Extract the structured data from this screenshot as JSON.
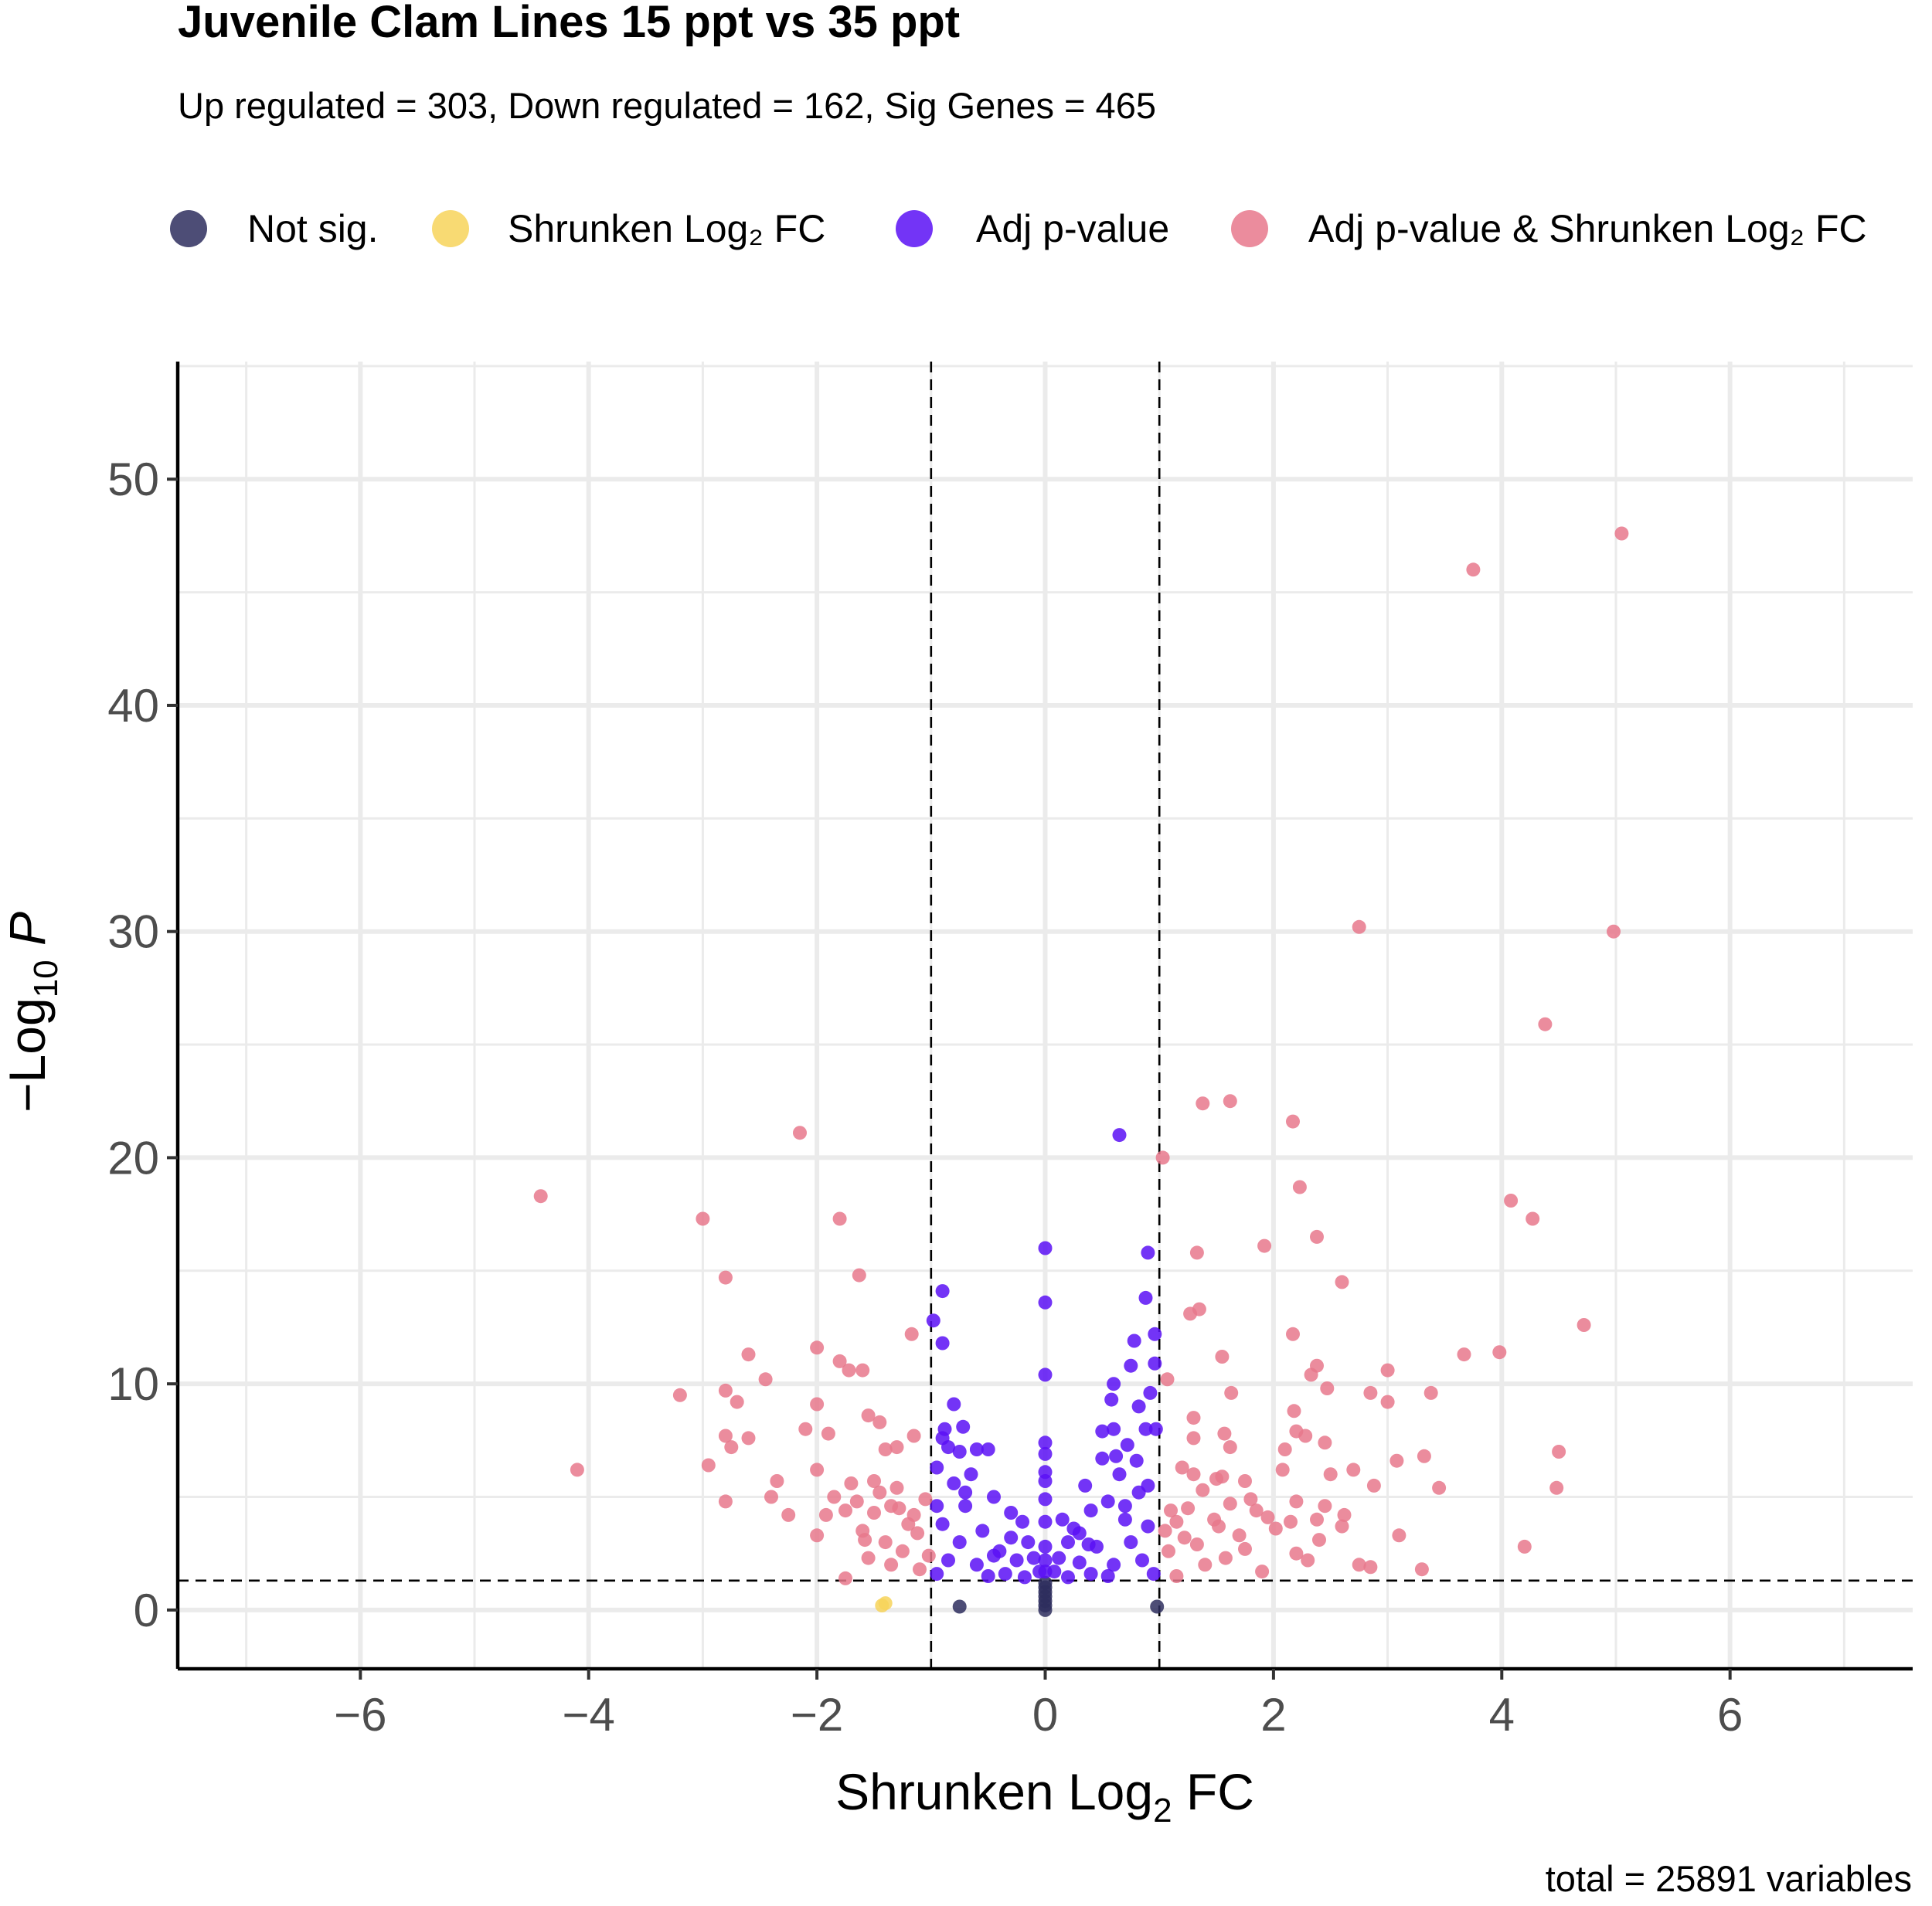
{
  "chart_data": {
    "type": "scatter",
    "title": "Juvenile Clam Lines 15 ppt vs 35 ppt",
    "subtitle": "Up regulated = 303, Down regulated = 162, Sig Genes = 465",
    "caption": "total = 25891 variables",
    "xlabel": {
      "base": "Shrunken Log",
      "sub": "2",
      "tail": " FC"
    },
    "ylabel": {
      "base": "−Log",
      "sub": "10",
      "tail": " P"
    },
    "xlim": [
      -7.6,
      7.6
    ],
    "ylim": [
      -2.6,
      55.2
    ],
    "xticks": [
      -6,
      -4,
      -2,
      0,
      2,
      4,
      6
    ],
    "xtick_labels": [
      "−6",
      "−4",
      "−2",
      "0",
      "2",
      "4",
      "6"
    ],
    "yticks": [
      0,
      10,
      20,
      30,
      40,
      50
    ],
    "ytick_labels": [
      "0",
      "10",
      "20",
      "30",
      "40",
      "50"
    ],
    "cutoffs": {
      "fc": [
        -1,
        1
      ],
      "p_log10": 1.3
    },
    "grid": true,
    "legend_position": "top",
    "series": [
      {
        "name": "Not sig.",
        "color": "#2e2e5e",
        "points": [
          [
            -0.75,
            0.15
          ],
          [
            0.98,
            0.15
          ],
          [
            0,
            0
          ],
          [
            0,
            0.2
          ],
          [
            0,
            0.4
          ],
          [
            0,
            0.6
          ],
          [
            0,
            0.8
          ],
          [
            0,
            1.0
          ],
          [
            0,
            1.2
          ]
        ]
      },
      {
        "name": "Shrunken Log₂ FC",
        "color": "#f7d45a",
        "points": [
          [
            -1.43,
            0.2
          ],
          [
            -1.4,
            0.3
          ]
        ]
      },
      {
        "name": "Adj p-value",
        "color": "#5a10f5",
        "points": [
          [
            0.65,
            21.0
          ],
          [
            0,
            16.0
          ],
          [
            0.9,
            15.8
          ],
          [
            -0.9,
            14.1
          ],
          [
            0.88,
            13.8
          ],
          [
            0,
            13.6
          ],
          [
            -0.98,
            12.8
          ],
          [
            0.96,
            12.2
          ],
          [
            -0.9,
            11.8
          ],
          [
            0.78,
            11.9
          ],
          [
            0.96,
            10.9
          ],
          [
            0.75,
            10.8
          ],
          [
            0,
            10.4
          ],
          [
            0.6,
            10.0
          ],
          [
            0.92,
            9.6
          ],
          [
            0.58,
            9.3
          ],
          [
            -0.8,
            9.1
          ],
          [
            0.82,
            9.0
          ],
          [
            -0.72,
            8.1
          ],
          [
            -0.88,
            8.0
          ],
          [
            0.6,
            8.0
          ],
          [
            0.88,
            8.0
          ],
          [
            0.97,
            8.0
          ],
          [
            -0.9,
            7.6
          ],
          [
            0,
            7.4
          ],
          [
            0.72,
            7.3
          ],
          [
            -0.85,
            7.2
          ],
          [
            -0.5,
            7.1
          ],
          [
            -0.6,
            7.1
          ],
          [
            -0.75,
            7.0
          ],
          [
            0,
            6.9
          ],
          [
            0.5,
            6.7
          ],
          [
            0.8,
            6.6
          ],
          [
            -0.95,
            6.3
          ],
          [
            0,
            6.1
          ],
          [
            0.65,
            6.0
          ],
          [
            -0.8,
            5.6
          ],
          [
            0,
            5.7
          ],
          [
            0.35,
            5.5
          ],
          [
            -0.45,
            5.0
          ],
          [
            0.9,
            5.5
          ],
          [
            0.55,
            4.8
          ],
          [
            -0.3,
            4.3
          ],
          [
            0.4,
            4.4
          ],
          [
            -0.7,
            4.6
          ],
          [
            0.7,
            4.6
          ],
          [
            0,
            4.9
          ],
          [
            -0.2,
            3.9
          ],
          [
            0.25,
            3.6
          ],
          [
            0.3,
            3.4
          ],
          [
            -0.55,
            3.5
          ],
          [
            -0.9,
            3.8
          ],
          [
            0.9,
            3.7
          ],
          [
            -0.15,
            3.0
          ],
          [
            0.2,
            3.0
          ],
          [
            -0.1,
            2.3
          ],
          [
            0.12,
            2.3
          ],
          [
            -0.4,
            2.6
          ],
          [
            0.45,
            2.8
          ],
          [
            -0.75,
            3.0
          ],
          [
            0.75,
            3.0
          ],
          [
            0,
            3.9
          ],
          [
            -0.25,
            2.2
          ],
          [
            0.3,
            2.1
          ],
          [
            -0.6,
            2.0
          ],
          [
            0.6,
            2.0
          ],
          [
            -0.85,
            2.2
          ],
          [
            0.85,
            2.2
          ],
          [
            -0.05,
            1.7
          ],
          [
            0.08,
            1.7
          ],
          [
            -0.35,
            1.6
          ],
          [
            0.4,
            1.6
          ],
          [
            -0.95,
            1.6
          ],
          [
            0.95,
            1.6
          ],
          [
            -0.5,
            1.5
          ],
          [
            0.55,
            1.5
          ],
          [
            -0.18,
            1.45
          ],
          [
            0.2,
            1.45
          ],
          [
            0,
            2.8
          ],
          [
            0,
            2.2
          ],
          [
            0,
            1.7
          ],
          [
            -0.65,
            6.0
          ],
          [
            0.5,
            7.9
          ],
          [
            -0.3,
            3.2
          ],
          [
            0.15,
            4.0
          ],
          [
            0.82,
            5.2
          ],
          [
            -0.95,
            4.6
          ],
          [
            0.62,
            6.8
          ],
          [
            -0.7,
            5.2
          ],
          [
            0.7,
            4.0
          ],
          [
            -0.45,
            2.4
          ],
          [
            0.38,
            2.9
          ]
        ]
      },
      {
        "name": "Adj p-value & Shrunken Log₂ FC",
        "color": "#e8788c",
        "points": [
          [
            5.05,
            47.6
          ],
          [
            3.75,
            46.0
          ],
          [
            2.75,
            30.2
          ],
          [
            4.98,
            30.0
          ],
          [
            4.38,
            25.9
          ],
          [
            1.62,
            22.5
          ],
          [
            1.38,
            22.4
          ],
          [
            2.17,
            21.6
          ],
          [
            -2.15,
            21.1
          ],
          [
            1.03,
            20.0
          ],
          [
            2.23,
            18.7
          ],
          [
            -4.42,
            18.3
          ],
          [
            4.08,
            18.1
          ],
          [
            -3.0,
            17.3
          ],
          [
            -1.8,
            17.3
          ],
          [
            4.27,
            17.3
          ],
          [
            2.38,
            16.5
          ],
          [
            1.92,
            16.1
          ],
          [
            1.33,
            15.8
          ],
          [
            -2.8,
            14.7
          ],
          [
            -1.63,
            14.8
          ],
          [
            2.6,
            14.5
          ],
          [
            1.27,
            13.1
          ],
          [
            1.35,
            13.3
          ],
          [
            4.72,
            12.6
          ],
          [
            -1.17,
            12.2
          ],
          [
            2.17,
            12.2
          ],
          [
            -1.8,
            11.0
          ],
          [
            3.67,
            11.3
          ],
          [
            3.98,
            11.4
          ],
          [
            -2.6,
            11.3
          ],
          [
            -2.0,
            11.6
          ],
          [
            -1.72,
            10.6
          ],
          [
            1.55,
            11.2
          ],
          [
            -1.6,
            10.6
          ],
          [
            2.38,
            10.8
          ],
          [
            3.0,
            10.6
          ],
          [
            2.33,
            10.4
          ],
          [
            -2.45,
            10.2
          ],
          [
            1.07,
            10.2
          ],
          [
            -3.2,
            9.5
          ],
          [
            2.47,
            9.8
          ],
          [
            2.85,
            9.6
          ],
          [
            -2.8,
            9.7
          ],
          [
            1.63,
            9.6
          ],
          [
            -2.7,
            9.2
          ],
          [
            -2.0,
            9.1
          ],
          [
            3.0,
            9.2
          ],
          [
            3.38,
            9.6
          ],
          [
            1.3,
            8.5
          ],
          [
            -1.45,
            8.3
          ],
          [
            -1.55,
            8.6
          ],
          [
            2.18,
            8.8
          ],
          [
            -2.1,
            8.0
          ],
          [
            2.2,
            7.9
          ],
          [
            2.28,
            7.7
          ],
          [
            -1.9,
            7.8
          ],
          [
            1.57,
            7.8
          ],
          [
            -2.8,
            7.7
          ],
          [
            -2.6,
            7.6
          ],
          [
            -1.15,
            7.7
          ],
          [
            1.3,
            7.6
          ],
          [
            -1.4,
            7.1
          ],
          [
            -1.3,
            7.2
          ],
          [
            2.45,
            7.4
          ],
          [
            -2.75,
            7.2
          ],
          [
            1.62,
            7.2
          ],
          [
            2.1,
            7.1
          ],
          [
            4.5,
            7.0
          ],
          [
            -4.1,
            6.2
          ],
          [
            -2.95,
            6.4
          ],
          [
            -2.0,
            6.2
          ],
          [
            1.2,
            6.3
          ],
          [
            3.08,
            6.6
          ],
          [
            3.32,
            6.8
          ],
          [
            2.08,
            6.2
          ],
          [
            1.3,
            6.0
          ],
          [
            2.7,
            6.2
          ],
          [
            2.5,
            6.0
          ],
          [
            1.55,
            5.9
          ],
          [
            -2.35,
            5.7
          ],
          [
            -1.7,
            5.6
          ],
          [
            -1.5,
            5.7
          ],
          [
            1.5,
            5.8
          ],
          [
            1.75,
            5.7
          ],
          [
            2.88,
            5.5
          ],
          [
            4.48,
            5.4
          ],
          [
            3.45,
            5.4
          ],
          [
            -2.8,
            4.8
          ],
          [
            -2.4,
            5.0
          ],
          [
            -1.85,
            5.0
          ],
          [
            -1.3,
            5.4
          ],
          [
            1.38,
            5.3
          ],
          [
            1.8,
            4.9
          ],
          [
            2.2,
            4.8
          ],
          [
            2.45,
            4.6
          ],
          [
            -2.25,
            4.2
          ],
          [
            -1.75,
            4.4
          ],
          [
            -1.35,
            4.6
          ],
          [
            1.25,
            4.5
          ],
          [
            1.62,
            4.7
          ],
          [
            2.62,
            4.2
          ],
          [
            -1.5,
            4.3
          ],
          [
            -1.15,
            4.2
          ],
          [
            1.95,
            4.1
          ],
          [
            2.38,
            4.0
          ],
          [
            1.1,
            4.4
          ],
          [
            -1.6,
            3.5
          ],
          [
            -2.0,
            3.3
          ],
          [
            1.52,
            3.7
          ],
          [
            2.6,
            3.7
          ],
          [
            3.1,
            3.3
          ],
          [
            1.05,
            3.5
          ],
          [
            2.4,
            3.1
          ],
          [
            -1.4,
            3.0
          ],
          [
            1.22,
            3.2
          ],
          [
            -1.25,
            2.6
          ],
          [
            1.75,
            2.7
          ],
          [
            2.2,
            2.5
          ],
          [
            4.2,
            2.8
          ],
          [
            -1.55,
            2.3
          ],
          [
            1.4,
            2.0
          ],
          [
            2.75,
            2.0
          ],
          [
            2.85,
            1.9
          ],
          [
            3.3,
            1.8
          ],
          [
            -1.75,
            1.4
          ],
          [
            1.15,
            1.5
          ],
          [
            -1.1,
            1.8
          ],
          [
            1.9,
            1.7
          ],
          [
            -1.2,
            3.8
          ],
          [
            1.48,
            4.0
          ],
          [
            -1.45,
            5.2
          ],
          [
            1.85,
            4.4
          ],
          [
            -1.05,
            4.9
          ],
          [
            1.08,
            2.6
          ],
          [
            -1.35,
            2.0
          ],
          [
            1.7,
            3.3
          ],
          [
            -1.65,
            4.8
          ],
          [
            2.02,
            3.6
          ],
          [
            -1.02,
            2.4
          ],
          [
            1.33,
            2.9
          ],
          [
            -1.92,
            4.2
          ],
          [
            2.3,
            2.2
          ],
          [
            -1.12,
            3.4
          ],
          [
            1.58,
            2.3
          ],
          [
            -1.28,
            4.5
          ],
          [
            1.15,
            3.9
          ],
          [
            -1.58,
            3.1
          ],
          [
            2.15,
            3.9
          ]
        ]
      }
    ]
  }
}
